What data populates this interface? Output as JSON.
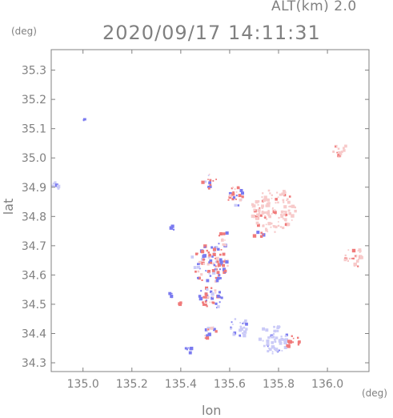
{
  "header": {
    "altitude_label": "ALT(km) 2.0",
    "timestamp": "2020/09/17 14:11:31"
  },
  "axes": {
    "x_label": "lon",
    "y_label": "lat",
    "x_unit": "(deg)",
    "y_unit": "(deg)",
    "x_ticks": [
      "135.0",
      "135.2",
      "135.4",
      "135.6",
      "135.8",
      "136.0"
    ],
    "y_ticks": [
      "35.3",
      "35.2",
      "35.1",
      "35.0",
      "34.9",
      "34.8",
      "34.7",
      "34.6",
      "34.5",
      "34.4",
      "34.3"
    ]
  },
  "colors": {
    "frame": "#808080",
    "text": "#808080",
    "positive": "#f07a7a",
    "negative": "#7a7af0",
    "positive_light": "#f7caca",
    "negative_light": "#cacaf7"
  },
  "chart_data": {
    "type": "heatmap",
    "xlim": [
      134.87,
      136.17
    ],
    "ylim": [
      34.27,
      35.37
    ],
    "grid": false,
    "clusters": [
      {
        "lon": 135.01,
        "lat": 35.13,
        "r": 0.01,
        "tone": "negative"
      },
      {
        "lon": 134.89,
        "lat": 34.91,
        "r": 0.02,
        "tone": "negative_light"
      },
      {
        "lon": 136.05,
        "lat": 35.03,
        "r": 0.03,
        "tone": "positive_light"
      },
      {
        "lon": 135.78,
        "lat": 34.82,
        "r": 0.09,
        "tone": "positive_light"
      },
      {
        "lon": 135.63,
        "lat": 34.87,
        "r": 0.04,
        "tone": "mixed"
      },
      {
        "lon": 135.52,
        "lat": 34.92,
        "r": 0.03,
        "tone": "mixed"
      },
      {
        "lon": 135.37,
        "lat": 34.76,
        "r": 0.01,
        "tone": "negative"
      },
      {
        "lon": 136.11,
        "lat": 34.66,
        "r": 0.04,
        "tone": "positive_light"
      },
      {
        "lon": 135.52,
        "lat": 34.64,
        "r": 0.08,
        "tone": "mixed"
      },
      {
        "lon": 135.52,
        "lat": 34.52,
        "r": 0.05,
        "tone": "mixed"
      },
      {
        "lon": 135.36,
        "lat": 34.53,
        "r": 0.01,
        "tone": "negative"
      },
      {
        "lon": 135.4,
        "lat": 34.5,
        "r": 0.01,
        "tone": "positive"
      },
      {
        "lon": 135.64,
        "lat": 34.42,
        "r": 0.04,
        "tone": "negative_light"
      },
      {
        "lon": 135.78,
        "lat": 34.38,
        "r": 0.06,
        "tone": "negative_light"
      },
      {
        "lon": 135.86,
        "lat": 34.37,
        "r": 0.03,
        "tone": "positive"
      },
      {
        "lon": 135.52,
        "lat": 34.4,
        "r": 0.03,
        "tone": "mixed"
      },
      {
        "lon": 135.44,
        "lat": 34.35,
        "r": 0.02,
        "tone": "negative"
      },
      {
        "lon": 135.72,
        "lat": 34.74,
        "r": 0.02,
        "tone": "mixed"
      },
      {
        "lon": 135.58,
        "lat": 34.72,
        "r": 0.03,
        "tone": "mixed"
      }
    ]
  }
}
